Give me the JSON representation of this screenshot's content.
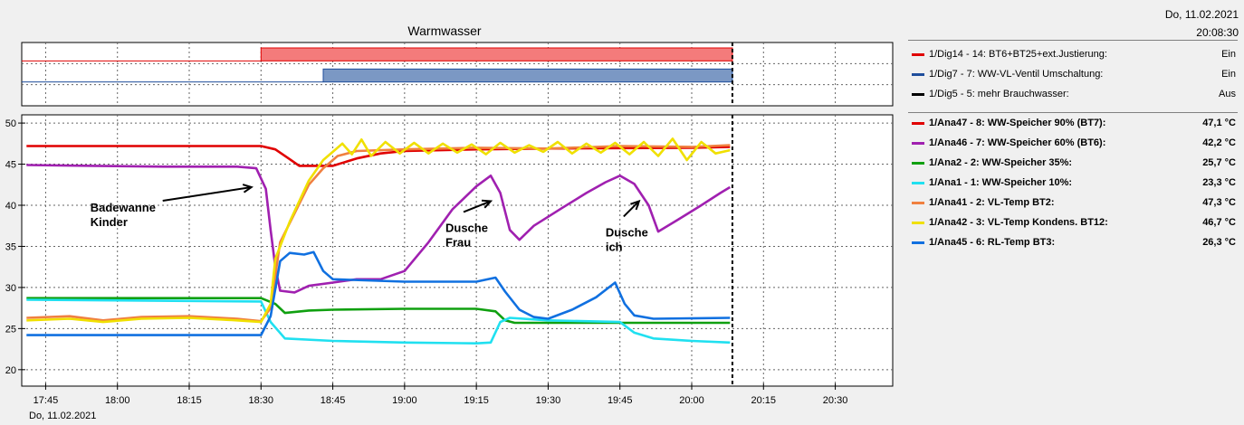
{
  "header": {
    "date": "Do, 11.02.2021",
    "time": "20:08:30"
  },
  "digital_legend": [
    {
      "label": "1/Dig14 - 14: BT6+BT25+ext.Justierung:",
      "value": "Ein",
      "color": "#e00000"
    },
    {
      "label": "1/Dig7 - 7: WW-VL-Ventil Umschaltung:",
      "value": "Ein",
      "color": "#1f4e9c"
    },
    {
      "label": "1/Dig5 - 5: mehr Brauchwasser:",
      "value": "Aus",
      "color": "#000000"
    }
  ],
  "analog_legend": [
    {
      "label": "1/Ana47 - 8: WW-Speicher 90% (BT7):",
      "value": "47,1 °C",
      "color": "#e00000"
    },
    {
      "label": "1/Ana46 - 7: WW-Speicher 60% (BT6):",
      "value": "42,2 °C",
      "color": "#a020b0"
    },
    {
      "label": "1/Ana2 - 2: WW-Speicher 35%:",
      "value": "25,7 °C",
      "color": "#10a010"
    },
    {
      "label": "1/Ana1 - 1: WW-Speicher 10%:",
      "value": "23,3 °C",
      "color": "#20e0f0"
    },
    {
      "label": "1/Ana41 - 2: VL-Temp BT2:",
      "value": "47,3 °C",
      "color": "#f08040"
    },
    {
      "label": "1/Ana42 - 3: VL-Temp Kondens. BT12:",
      "value": "46,7 °C",
      "color": "#f0e000"
    },
    {
      "label": "1/Ana45 - 6: RL-Temp BT3:",
      "value": "26,3 °C",
      "color": "#1070e0"
    }
  ],
  "chart_data": [
    {
      "type": "line",
      "title": "Warmwasser",
      "x_unit": "time",
      "x_ticks": [
        "17:45",
        "18:00",
        "18:15",
        "18:30",
        "18:45",
        "19:00",
        "19:15",
        "19:30",
        "19:45",
        "20:00",
        "20:15",
        "20:30"
      ],
      "xlim": [
        "17:40",
        "20:42"
      ],
      "x_date_label": "Do, 11.02.2021",
      "current_time_marker": "20:08:30",
      "digital_series": [
        {
          "name": "1/Dig14 - 14: BT6+BT25+ext.Justierung",
          "color": "#e00000",
          "fill": "#f47b7b",
          "on_from": "18:30",
          "on_to": "20:08:30"
        },
        {
          "name": "1/Dig7 - 7: WW-VL-Ventil Umschaltung",
          "color": "#1f4e9c",
          "fill": "#7b98c4",
          "on_from": "18:43",
          "on_to": "20:08:30"
        },
        {
          "name": "1/Dig5 - 5: mehr Brauchwasser",
          "color": "#000000",
          "fill": "",
          "on_from": "",
          "on_to": ""
        }
      ]
    },
    {
      "type": "line",
      "ylim": [
        18,
        51
      ],
      "y_ticks": [
        20,
        25,
        30,
        35,
        40,
        45,
        50
      ],
      "xlim": [
        "17:40",
        "20:42"
      ],
      "grid": true,
      "series": [
        {
          "name": "1/Ana47 - 8: WW-Speicher 90% (BT7)",
          "color": "#e00000",
          "points": [
            [
              "17:41",
              47.2
            ],
            [
              "18:30",
              47.2
            ],
            [
              "18:33",
              46.8
            ],
            [
              "18:36",
              45.6
            ],
            [
              "18:38",
              44.8
            ],
            [
              "18:45",
              44.8
            ],
            [
              "18:50",
              45.7
            ],
            [
              "18:55",
              46.3
            ],
            [
              "19:00",
              46.6
            ],
            [
              "19:15",
              46.8
            ],
            [
              "19:30",
              46.9
            ],
            [
              "20:00",
              47.0
            ],
            [
              "20:08",
              47.1
            ]
          ]
        },
        {
          "name": "1/Ana46 - 7: WW-Speicher 60% (BT6)",
          "color": "#a020b0",
          "points": [
            [
              "17:41",
              44.9
            ],
            [
              "17:55",
              44.8
            ],
            [
              "18:10",
              44.7
            ],
            [
              "18:25",
              44.7
            ],
            [
              "18:29",
              44.5
            ],
            [
              "18:31",
              42.0
            ],
            [
              "18:32",
              37.0
            ],
            [
              "18:33",
              32.5
            ],
            [
              "18:34",
              29.6
            ],
            [
              "18:37",
              29.4
            ],
            [
              "18:40",
              30.2
            ],
            [
              "18:45",
              30.6
            ],
            [
              "18:50",
              31.0
            ],
            [
              "18:55",
              31.0
            ],
            [
              "19:00",
              32.0
            ],
            [
              "19:05",
              35.5
            ],
            [
              "19:10",
              39.5
            ],
            [
              "19:15",
              42.3
            ],
            [
              "19:18",
              43.6
            ],
            [
              "19:20",
              41.5
            ],
            [
              "19:22",
              37.0
            ],
            [
              "19:24",
              35.8
            ],
            [
              "19:27",
              37.5
            ],
            [
              "19:33",
              39.7
            ],
            [
              "19:38",
              41.5
            ],
            [
              "19:42",
              42.8
            ],
            [
              "19:45",
              43.6
            ],
            [
              "19:48",
              42.6
            ],
            [
              "19:51",
              40.0
            ],
            [
              "19:53",
              36.8
            ],
            [
              "19:57",
              38.2
            ],
            [
              "20:02",
              40.0
            ],
            [
              "20:06",
              41.5
            ],
            [
              "20:08",
              42.2
            ]
          ]
        },
        {
          "name": "1/Ana2 - 2: WW-Speicher 35%",
          "color": "#10a010",
          "points": [
            [
              "17:41",
              28.7
            ],
            [
              "18:30",
              28.7
            ],
            [
              "18:33",
              28.0
            ],
            [
              "18:35",
              26.9
            ],
            [
              "18:40",
              27.2
            ],
            [
              "18:45",
              27.3
            ],
            [
              "19:00",
              27.4
            ],
            [
              "19:15",
              27.4
            ],
            [
              "19:19",
              27.1
            ],
            [
              "19:21",
              26.0
            ],
            [
              "19:23",
              25.7
            ],
            [
              "20:08",
              25.7
            ]
          ]
        },
        {
          "name": "1/Ana1 - 1: WW-Speicher 10%",
          "color": "#20e0f0",
          "points": [
            [
              "17:41",
              28.5
            ],
            [
              "18:30",
              28.3
            ],
            [
              "18:32",
              25.8
            ],
            [
              "18:35",
              23.8
            ],
            [
              "18:45",
              23.5
            ],
            [
              "19:00",
              23.3
            ],
            [
              "19:15",
              23.2
            ],
            [
              "19:18",
              23.3
            ],
            [
              "19:20",
              25.8
            ],
            [
              "19:22",
              26.3
            ],
            [
              "19:30",
              26.0
            ],
            [
              "19:45",
              25.8
            ],
            [
              "19:48",
              24.5
            ],
            [
              "19:52",
              23.8
            ],
            [
              "20:00",
              23.5
            ],
            [
              "20:08",
              23.3
            ]
          ]
        },
        {
          "name": "1/Ana41 - 2: VL-Temp BT2",
          "color": "#f08040",
          "points": [
            [
              "17:41",
              26.3
            ],
            [
              "17:50",
              26.5
            ],
            [
              "17:57",
              26.0
            ],
            [
              "18:05",
              26.4
            ],
            [
              "18:15",
              26.5
            ],
            [
              "18:25",
              26.2
            ],
            [
              "18:30",
              25.9
            ],
            [
              "18:32",
              27.5
            ],
            [
              "18:34",
              35.5
            ],
            [
              "18:37",
              39.0
            ],
            [
              "18:40",
              42.5
            ],
            [
              "18:43",
              44.5
            ],
            [
              "18:46",
              46.0
            ],
            [
              "18:50",
              46.6
            ],
            [
              "19:00",
              46.8
            ],
            [
              "19:15",
              47.0
            ],
            [
              "19:30",
              46.9
            ],
            [
              "19:45",
              47.2
            ],
            [
              "20:00",
              47.1
            ],
            [
              "20:08",
              47.3
            ]
          ]
        },
        {
          "name": "1/Ana42 - 3: VL-Temp Kondens. BT12",
          "color": "#f0e000",
          "points": [
            [
              "17:41",
              26.0
            ],
            [
              "17:50",
              26.2
            ],
            [
              "17:57",
              25.8
            ],
            [
              "18:05",
              26.2
            ],
            [
              "18:15",
              26.3
            ],
            [
              "18:25",
              26.0
            ],
            [
              "18:30",
              25.8
            ],
            [
              "18:32",
              28.0
            ],
            [
              "18:33",
              33.5
            ],
            [
              "18:36",
              38.0
            ],
            [
              "18:40",
              43.0
            ],
            [
              "18:43",
              45.5
            ],
            [
              "18:45",
              46.5
            ],
            [
              "18:47",
              47.5
            ],
            [
              "18:49",
              46.2
            ],
            [
              "18:51",
              48.0
            ],
            [
              "18:53",
              46.0
            ],
            [
              "18:56",
              47.7
            ],
            [
              "18:59",
              46.3
            ],
            [
              "19:02",
              47.6
            ],
            [
              "19:05",
              46.3
            ],
            [
              "19:08",
              47.5
            ],
            [
              "19:11",
              46.4
            ],
            [
              "19:14",
              47.4
            ],
            [
              "19:17",
              46.2
            ],
            [
              "19:20",
              47.6
            ],
            [
              "19:23",
              46.4
            ],
            [
              "19:26",
              47.3
            ],
            [
              "19:29",
              46.5
            ],
            [
              "19:32",
              47.7
            ],
            [
              "19:35",
              46.3
            ],
            [
              "19:38",
              47.5
            ],
            [
              "19:41",
              46.4
            ],
            [
              "19:44",
              47.6
            ],
            [
              "19:47",
              46.2
            ],
            [
              "19:50",
              47.7
            ],
            [
              "19:53",
              46.0
            ],
            [
              "19:56",
              48.1
            ],
            [
              "19:59",
              45.5
            ],
            [
              "20:02",
              47.7
            ],
            [
              "20:05",
              46.3
            ],
            [
              "20:08",
              46.7
            ]
          ]
        },
        {
          "name": "1/Ana45 - 6: RL-Temp BT3",
          "color": "#1070e0",
          "points": [
            [
              "17:41",
              24.2
            ],
            [
              "18:30",
              24.2
            ],
            [
              "18:32",
              26.5
            ],
            [
              "18:34",
              33.2
            ],
            [
              "18:36",
              34.2
            ],
            [
              "18:39",
              34.0
            ],
            [
              "18:41",
              34.3
            ],
            [
              "18:43",
              32.0
            ],
            [
              "18:45",
              31.0
            ],
            [
              "19:00",
              30.7
            ],
            [
              "19:15",
              30.7
            ],
            [
              "19:19",
              31.2
            ],
            [
              "19:21",
              29.5
            ],
            [
              "19:24",
              27.3
            ],
            [
              "19:27",
              26.4
            ],
            [
              "19:30",
              26.2
            ],
            [
              "19:35",
              27.3
            ],
            [
              "19:40",
              28.8
            ],
            [
              "19:44",
              30.6
            ],
            [
              "19:46",
              28.0
            ],
            [
              "19:48",
              26.6
            ],
            [
              "19:52",
              26.2
            ],
            [
              "20:08",
              26.3
            ]
          ]
        }
      ],
      "annotations": [
        {
          "text": [
            "Badewanne",
            "Kinder"
          ],
          "arrow_to": [
            "18:28",
            42.2
          ]
        },
        {
          "text": [
            "Dusche",
            "Frau"
          ],
          "arrow_to": [
            "19:18",
            40.5
          ]
        },
        {
          "text": [
            "Dusche",
            "ich"
          ],
          "arrow_to": [
            "19:49",
            40.5
          ]
        }
      ]
    }
  ]
}
